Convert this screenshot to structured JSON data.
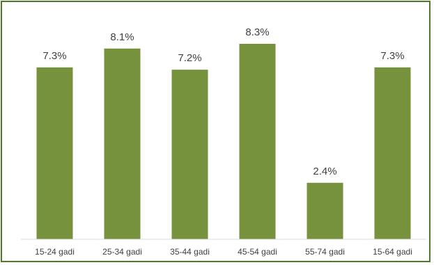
{
  "chart_data": {
    "type": "bar",
    "categories": [
      "15-24 gadi",
      "25-34 gadi",
      "35-44 gadi",
      "45-54 gadi",
      "55-74 gadi",
      "15-64 gadi"
    ],
    "values": [
      7.3,
      8.1,
      7.2,
      8.3,
      2.4,
      7.3
    ],
    "data_labels": [
      "7.3%",
      "8.1%",
      "7.2%",
      "8.3%",
      "2.4%",
      "7.3%"
    ],
    "title": "",
    "xlabel": "",
    "ylabel": "",
    "ylim": [
      0,
      9.6
    ],
    "grid": false,
    "legend": "none",
    "colors": {
      "bar": "#76923c",
      "frame": "#4f7a28",
      "axis": "#d9d9d9",
      "text": "#404040"
    }
  }
}
